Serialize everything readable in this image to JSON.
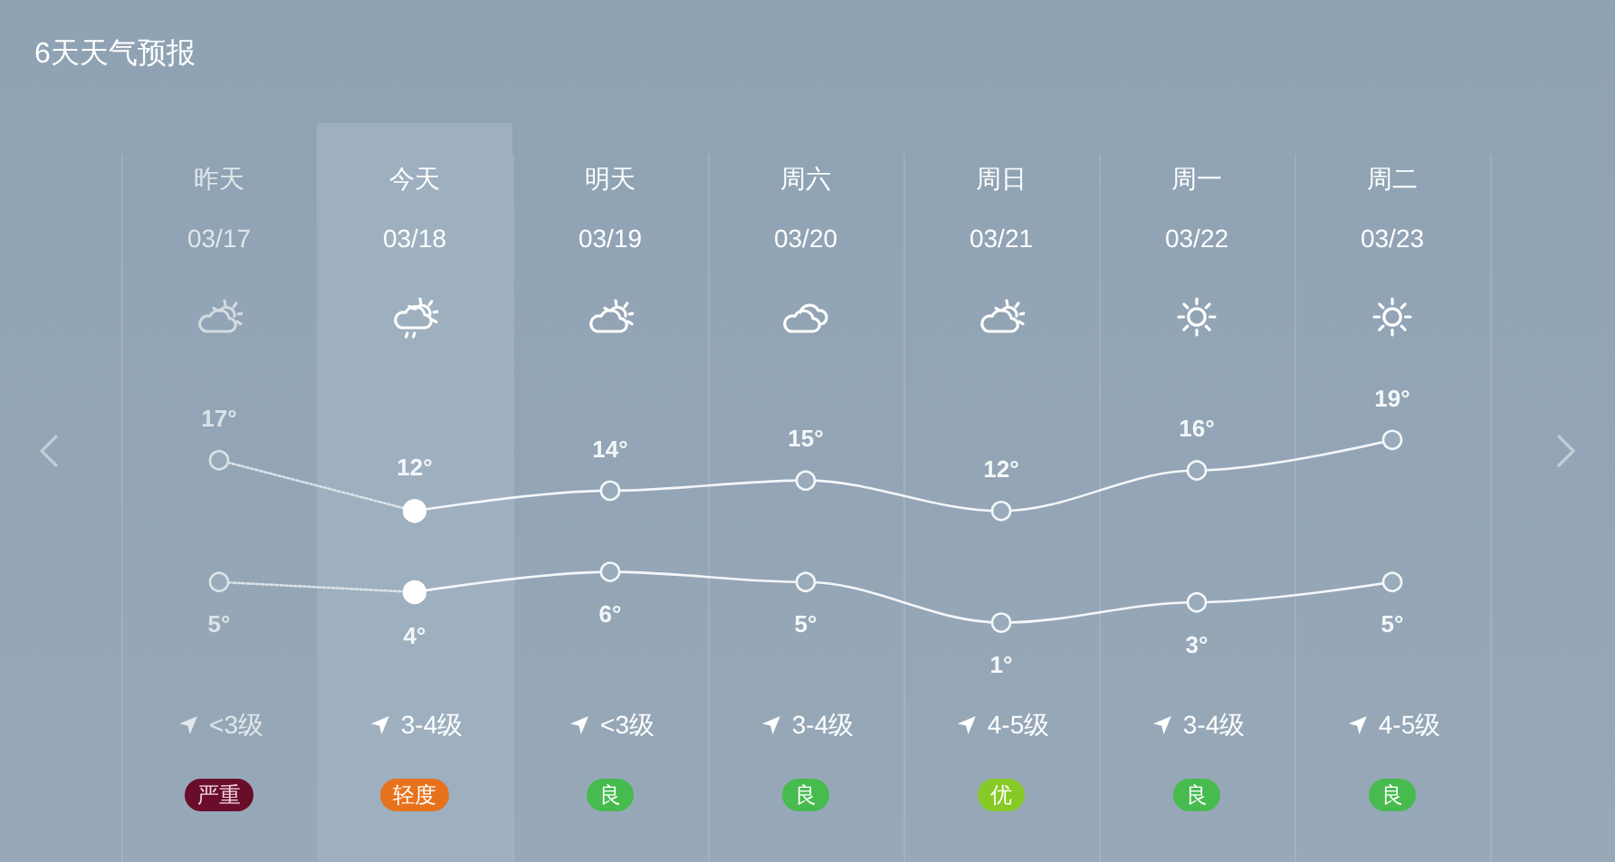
{
  "chart_data": {
    "type": "line",
    "title": "6天天气预报",
    "categories": [
      "昨天\n03/17",
      "今天\n03/18",
      "明天\n03/19",
      "周六\n03/20",
      "周日\n03/21",
      "周一\n03/22",
      "周二\n03/23"
    ],
    "series": [
      {
        "color": "#dbe2e8",
        "line_style": "dotted",
        "values": [
          17,
          12,
          null,
          null,
          null,
          null,
          null
        ],
        "value_labels": [
          "17°",
          null,
          null,
          null,
          null,
          null,
          null
        ]
      },
      {
        "color": "#f4f7f9",
        "line_style": "solid",
        "values": [
          null,
          12,
          14,
          15,
          12,
          16,
          19
        ],
        "value_labels": [
          null,
          "12°",
          "14°",
          "15°",
          "12°",
          "16°",
          "19°"
        ]
      },
      {
        "color": "#dbe2e8",
        "line_style": "dotted",
        "values": [
          5,
          4,
          null,
          null,
          null,
          null,
          null
        ],
        "value_labels": [
          "5°",
          null,
          null,
          null,
          null,
          null,
          null
        ]
      },
      {
        "color": "#f4f7f9",
        "line_style": "solid",
        "values": [
          null,
          4,
          6,
          5,
          1,
          3,
          5
        ],
        "value_labels": [
          null,
          "4°",
          "6°",
          "5°",
          "1°",
          "3°",
          "5°"
        ]
      }
    ],
    "marker": "circle",
    "grid": "x",
    "bands": [
      {
        "axis": "x",
        "from": "今天\n03/18",
        "to": "今天\n03/18",
        "color": "#9eb0c0"
      }
    ],
    "annotations": [
      "<3级",
      "严重",
      "3-4级",
      "轻度",
      "<3级",
      "良",
      "3-4级",
      "良",
      "4-5级",
      "优",
      "3-4级",
      "良",
      "4-5级",
      "良"
    ]
  }
}
